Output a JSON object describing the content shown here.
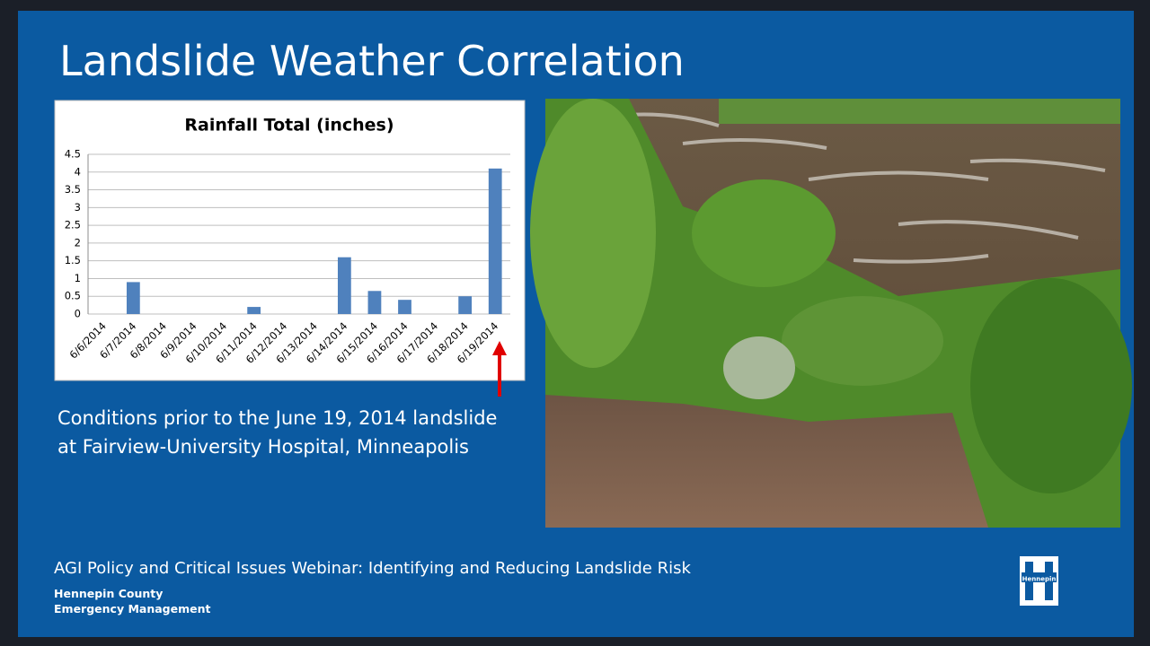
{
  "slide": {
    "title": "Landslide Weather Correlation",
    "caption": [
      "Conditions prior to the June 19, 2014 landslide",
      "at Fairview-University Hospital, Minneapolis"
    ],
    "footer": "AGI Policy and Critical Issues Webinar: Identifying and Reducing Landslide Risk",
    "organization": [
      "Hennepin County",
      "Emergency Management"
    ],
    "logo": "Hennepin"
  },
  "chart_data": {
    "type": "bar",
    "title": "Rainfall Total (inches)",
    "categories": [
      "6/6/2014",
      "6/7/2014",
      "6/8/2014",
      "6/9/2014",
      "6/10/2014",
      "6/11/2014",
      "6/12/2014",
      "6/13/2014",
      "6/14/2014",
      "6/15/2014",
      "6/16/2014",
      "6/17/2014",
      "6/18/2014",
      "6/19/2014"
    ],
    "values": [
      0,
      0.9,
      0,
      0,
      0,
      0.2,
      0,
      0,
      1.6,
      0.65,
      0.4,
      0,
      0.5,
      4.1
    ],
    "color": "#4f81bd",
    "ylim": [
      0,
      4.5
    ],
    "yticks": [
      0,
      0.5,
      1,
      1.5,
      2,
      2.5,
      3,
      3.5,
      4,
      4.5
    ],
    "grid": true
  }
}
